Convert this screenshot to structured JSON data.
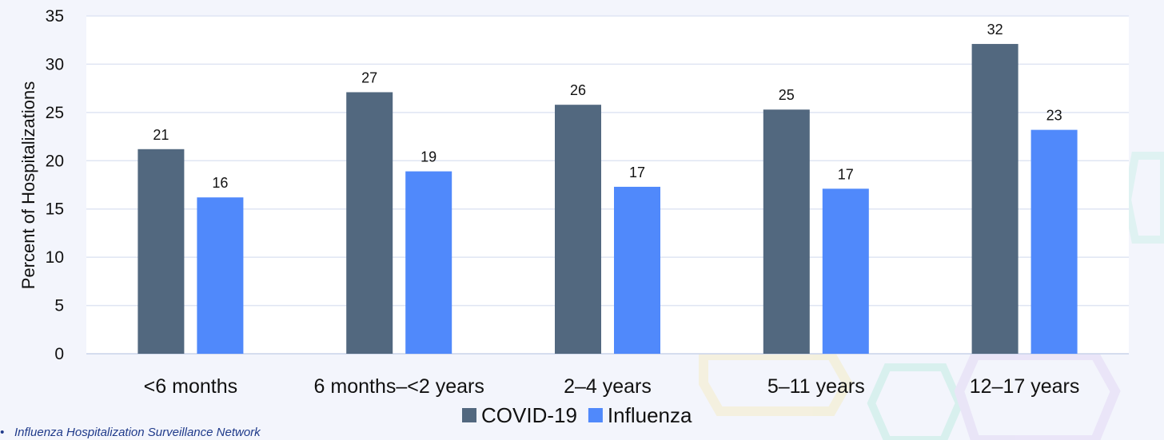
{
  "chart_data": {
    "type": "bar",
    "categories": [
      "<6 months",
      "6 months–<2 years",
      "2–4 years",
      "5–11 years",
      "12–17 years"
    ],
    "series": [
      {
        "name": "COVID-19",
        "color": "#52687f",
        "values": [
          21.2,
          27.1,
          25.8,
          25.3,
          32.1
        ],
        "labels": [
          "21",
          "27",
          "26",
          "25",
          "32"
        ]
      },
      {
        "name": "Influenza",
        "color": "#5089fb",
        "values": [
          16.2,
          18.9,
          17.3,
          17.1,
          23.2
        ],
        "labels": [
          "16",
          "19",
          "17",
          "17",
          "23"
        ]
      }
    ],
    "ylabel": "Percent of Hospitalizations",
    "xlabel": "",
    "ylim": [
      0,
      35
    ],
    "yticks": [
      0,
      5,
      10,
      15,
      20,
      25,
      30,
      35
    ],
    "grid": true,
    "legend_position": "bottom"
  },
  "footnote": {
    "bullet": "•",
    "text": "Influenza Hospitalization Surveillance Network"
  }
}
